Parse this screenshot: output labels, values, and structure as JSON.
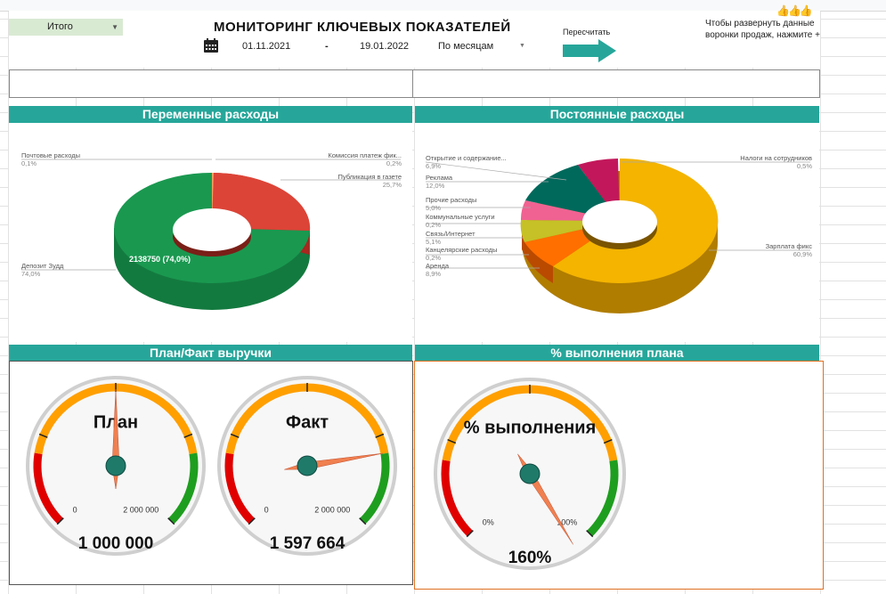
{
  "header": {
    "title": "МОНИТОРИНГ КЛЮЧЕВЫХ ПОКАЗАТЕЛЕЙ",
    "filter_value": "Итого",
    "date_from": "01.11.2021",
    "date_sep": "-",
    "date_to": "19.01.2022",
    "period": "По месяцам",
    "recalc_label": "Пересчитать",
    "hint": "Чтобы развернуть данные воронки продаж, нажмите +",
    "thumbs": "👍👍👍"
  },
  "sections": {
    "variable": "Переменные расходы",
    "fixed": "Постоянные расходы",
    "plan_fact": "План/Факт выручки",
    "pct_plan": "% выполнения плана"
  },
  "chart_data": [
    {
      "type": "pie",
      "title": "Переменные расходы",
      "style": "donut-3d",
      "labels": [
        "Депозит Зудд",
        "Комиссия платеж фик...",
        "Публикация в газете",
        "Почтовые расходы"
      ],
      "values": [
        74.0,
        0.2,
        25.7,
        0.1
      ],
      "pct_labels": [
        "74,0%",
        "0,2%",
        "25,7%",
        "0,1%"
      ],
      "colors": [
        "#1a9850",
        "#f4a261",
        "#d73027",
        "#888888"
      ],
      "data_label": "2138750 (74,0%)"
    },
    {
      "type": "pie",
      "title": "Постоянные расходы",
      "style": "donut-3d",
      "labels": [
        "Зарплата фикс",
        "Налоги на сотрудников",
        "Открытие и содержание...",
        "Реклама",
        "Прочие расходы",
        "Коммунальные услуги",
        "Связь/Интернет",
        "Канцелярские расходы",
        "Аренда"
      ],
      "values": [
        60.9,
        0.5,
        6.9,
        12.0,
        5.0,
        0.2,
        5.1,
        0.2,
        8.9
      ],
      "pct_labels": [
        "60,9%",
        "0,5%",
        "6,9%",
        "12,0%",
        "5,0%",
        "0,2%",
        "5,1%",
        "0,2%",
        "8,9%"
      ],
      "colors": [
        "#f4b400",
        "#d35400",
        "#c2185b",
        "#00695c",
        "#f06292",
        "#b0b0b0",
        "#c5c126",
        "#999999",
        "#ff6f00"
      ]
    }
  ],
  "gauges": [
    {
      "title": "План",
      "value_text": "1 000 000",
      "value": 1000000,
      "min": 0,
      "max": 2000000,
      "min_label": "0",
      "max_label": "2 000 000"
    },
    {
      "title": "Факт",
      "value_text": "1 597 664",
      "value": 1597664,
      "min": 0,
      "max": 2000000,
      "min_label": "0",
      "max_label": "2 000 000"
    },
    {
      "title": "% выполнения",
      "value_text": "160%",
      "value": 160,
      "min": 0,
      "max": 100,
      "min_label": "0%",
      "max_label": "100%"
    }
  ],
  "colors": {
    "accent": "#26a69a",
    "filter_bg": "#d9ead3"
  }
}
